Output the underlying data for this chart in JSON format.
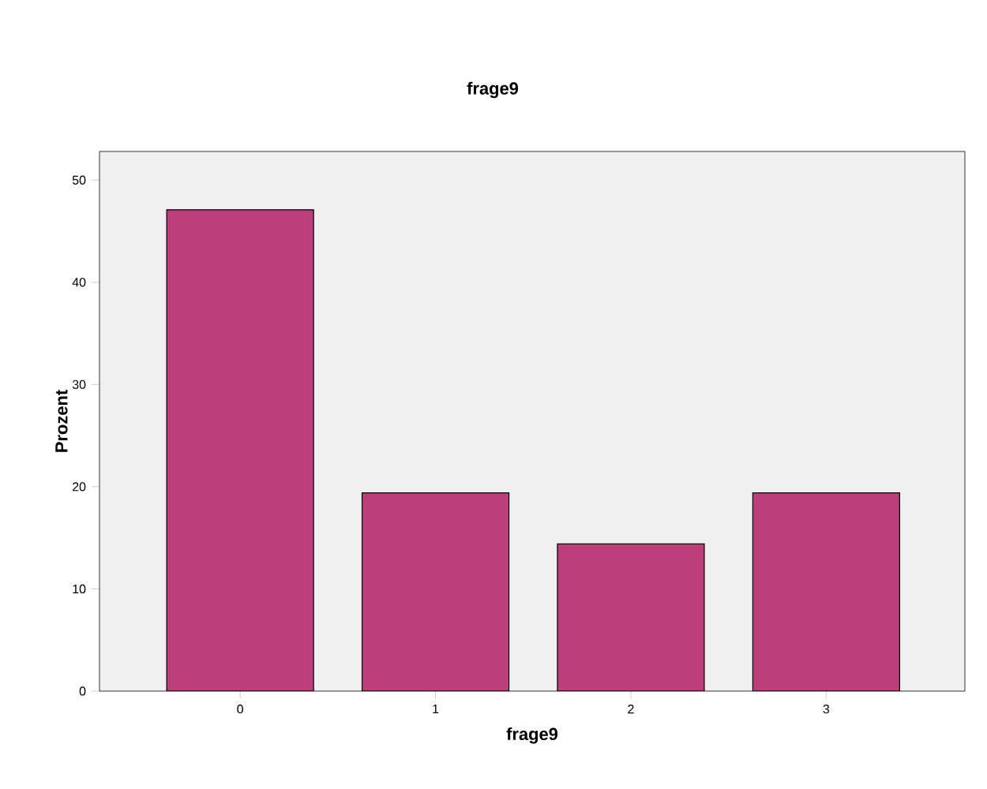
{
  "chart_data": {
    "type": "bar",
    "title": "frage9",
    "xlabel": "frage9",
    "ylabel": "Prozent",
    "categories": [
      "0",
      "1",
      "2",
      "3"
    ],
    "values": [
      47.1,
      19.4,
      14.4,
      19.4
    ],
    "color": "#bc3f7c",
    "ylim": [
      0,
      52.8
    ],
    "yticks": [
      0,
      10,
      20,
      30,
      40,
      50
    ],
    "grid": false
  }
}
